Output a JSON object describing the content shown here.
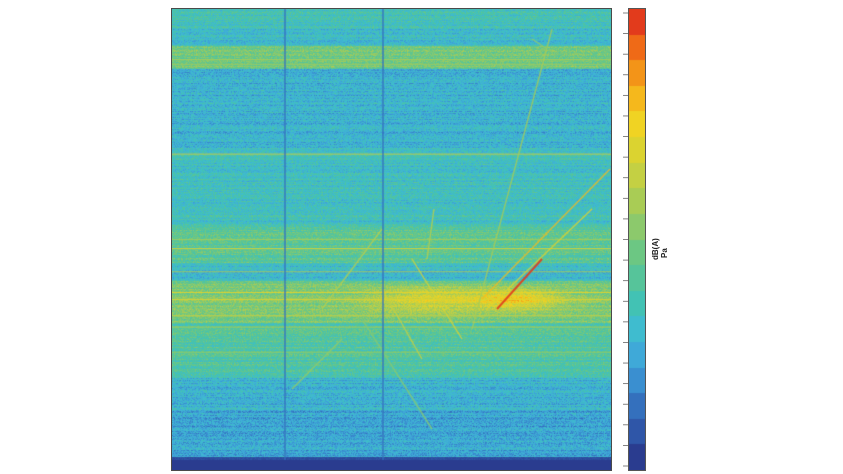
{
  "chart_data": {
    "type": "heatmap",
    "title": "",
    "xlabel": "",
    "ylabel": "",
    "colorbar": {
      "label": "dB(A)",
      "sublabel": "Pa",
      "colors": [
        "#2a3c8f",
        "#2f56a8",
        "#3470bd",
        "#3a8fd0",
        "#3fa9d8",
        "#3fbccf",
        "#42c2b4",
        "#56c49a",
        "#6cc783",
        "#8cc96c",
        "#a9cc55",
        "#c4d043",
        "#dbd330",
        "#f0d323",
        "#f5b81c",
        "#f39418",
        "#ef6a17",
        "#e23b1c"
      ],
      "grid": false
    },
    "background_level_rows": [
      {
        "band": "top",
        "level": "medium"
      },
      {
        "band": "upper-middle",
        "level": "low"
      },
      {
        "band": "middle",
        "level": "high"
      },
      {
        "band": "lower",
        "level": "medium"
      },
      {
        "band": "bottom",
        "level": "lowest"
      }
    ]
  }
}
